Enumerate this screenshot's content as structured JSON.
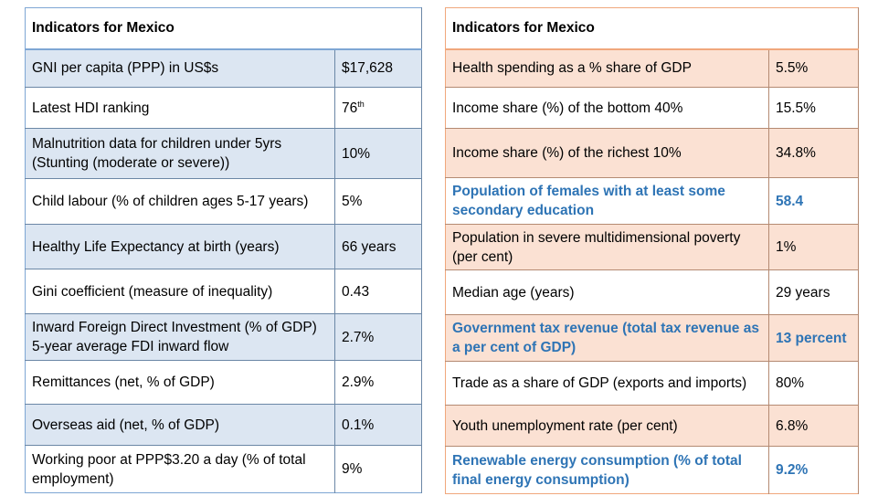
{
  "left": {
    "title": "Indicators for Mexico",
    "rows": [
      {
        "label": "GNI per capita (PPP) in US$s",
        "value": "$17,628"
      },
      {
        "label": "Latest HDI ranking",
        "value": "76",
        "value_sup": "th"
      },
      {
        "label": "Malnutrition data for children under 5yrs (Stunting (moderate or severe))",
        "value": "10%"
      },
      {
        "label": "Child labour (% of children ages 5-17 years)",
        "value": "5%"
      },
      {
        "label": "Healthy Life Expectancy at birth (years)",
        "value": "66 years"
      },
      {
        "label": "Gini coefficient (measure of inequality)",
        "value": "0.43"
      },
      {
        "label": "Inward Foreign Direct Investment (% of GDP) 5-year average FDI inward flow",
        "value": "2.7%"
      },
      {
        "label": "Remittances (net, % of GDP)",
        "value": "2.9%"
      },
      {
        "label": "Overseas aid (net, % of GDP)",
        "value": "0.1%"
      },
      {
        "label": "Working poor at PPP$3.20 a day (% of total employment)",
        "value": "9%"
      }
    ]
  },
  "right": {
    "title": "Indicators for Mexico",
    "rows": [
      {
        "label": "Health spending as a % share of GDP",
        "value": "5.5%"
      },
      {
        "label": "Income share (%) of the bottom 40%",
        "value": "15.5%"
      },
      {
        "label": "Income share (%) of the richest 10%",
        "value": "34.8%"
      },
      {
        "label": "Population of females with at least some secondary education",
        "value": "58.4"
      },
      {
        "label": "Population in severe multidimensional poverty (per cent)",
        "value": "1%"
      },
      {
        "label": "Median age (years)",
        "value": "29 years"
      },
      {
        "label": "Government tax revenue (total tax revenue as a per cent of GDP)",
        "value": "13 percent"
      },
      {
        "label": "Trade as a share of GDP (exports and imports)",
        "value": "80%"
      },
      {
        "label": "Youth unemployment rate (per cent)",
        "value": "6.8%"
      },
      {
        "label": "Renewable energy consumption (% of total final energy consumption)",
        "value": "9.2%"
      }
    ]
  },
  "colors": {
    "left_border": "#7ea6d4",
    "left_shade": "#dce6f2",
    "right_border": "#f0a77c",
    "right_shade": "#fbe1d3",
    "highlight_text": "#2e74b5"
  }
}
